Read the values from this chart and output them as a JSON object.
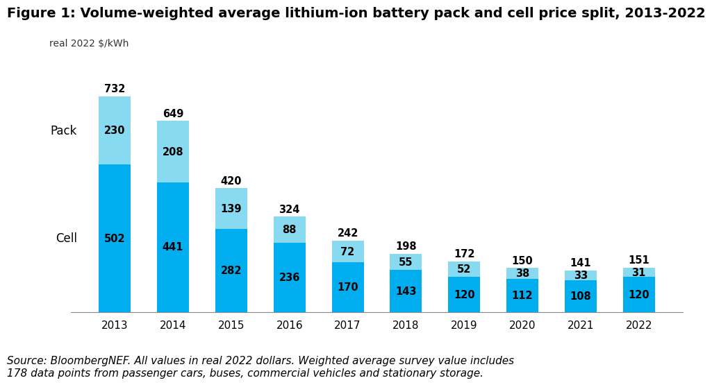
{
  "title": "Figure 1: Volume-weighted average lithium-ion battery pack and cell price split, 2013-2022",
  "ylabel": "real 2022 $/kWh",
  "years": [
    2013,
    2014,
    2015,
    2016,
    2017,
    2018,
    2019,
    2020,
    2021,
    2022
  ],
  "cell_values": [
    502,
    441,
    282,
    236,
    170,
    143,
    120,
    112,
    108,
    120
  ],
  "pack_values": [
    230,
    208,
    139,
    88,
    72,
    55,
    52,
    38,
    33,
    31
  ],
  "total_values": [
    732,
    649,
    420,
    324,
    242,
    198,
    172,
    150,
    141,
    151
  ],
  "cell_color": "#00AEEF",
  "pack_color": "#87DAEF",
  "bar_width": 0.55,
  "ylim_max": 800,
  "source_text": "Source: BloombergNEF. All values in real 2022 dollars. Weighted average survey value includes\n178 data points from passenger cars, buses, commercial vehicles and stationary storage.",
  "pack_label": "Pack",
  "cell_label": "Cell",
  "title_fontsize": 14,
  "tick_fontsize": 11,
  "value_fontsize": 10.5,
  "source_fontsize": 11,
  "ylabel_fontsize": 10,
  "label_fontsize": 12,
  "background_color": "#ffffff"
}
